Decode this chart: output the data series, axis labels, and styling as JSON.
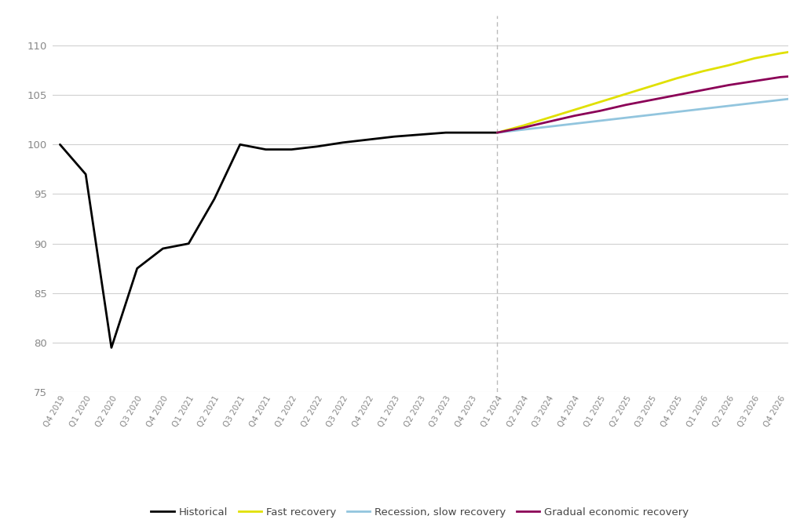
{
  "background_color": "#ffffff",
  "ylim": [
    75,
    113
  ],
  "yticks": [
    75,
    80,
    85,
    90,
    95,
    100,
    105,
    110
  ],
  "grid_color": "#d0d0d0",
  "vline_x": 17,
  "historical": {
    "label": "Historical",
    "color": "#000000",
    "x": [
      0,
      1,
      2,
      3,
      4,
      5,
      6,
      7,
      8,
      9,
      10,
      11,
      12,
      13,
      14,
      15,
      16,
      17
    ],
    "y": [
      100.0,
      97.0,
      79.5,
      87.5,
      89.5,
      90.0,
      94.5,
      100.0,
      99.5,
      99.5,
      99.8,
      100.2,
      100.5,
      100.8,
      101.0,
      101.2,
      101.2,
      101.2
    ]
  },
  "fast_recovery": {
    "label": "Fast recovery",
    "color": "#e0e000",
    "x": [
      17,
      18,
      19,
      20,
      21,
      22,
      23,
      24,
      25,
      26,
      27,
      28,
      29
    ],
    "y": [
      101.2,
      101.9,
      102.7,
      103.5,
      104.3,
      105.1,
      105.9,
      106.7,
      107.4,
      108.0,
      108.7,
      109.2,
      109.6
    ]
  },
  "slow_recovery": {
    "label": "Recession, slow recovery",
    "color": "#92c5de",
    "x": [
      17,
      18,
      19,
      20,
      21,
      22,
      23,
      24,
      25,
      26,
      27,
      28,
      29
    ],
    "y": [
      101.2,
      101.5,
      101.8,
      102.1,
      102.4,
      102.7,
      103.0,
      103.3,
      103.6,
      103.9,
      104.2,
      104.5,
      104.8
    ]
  },
  "gradual_recovery": {
    "label": "Gradual economic recovery",
    "color": "#8b0057",
    "x": [
      17,
      18,
      19,
      20,
      21,
      22,
      23,
      24,
      25,
      26,
      27,
      28,
      29
    ],
    "y": [
      101.2,
      101.7,
      102.3,
      102.9,
      103.4,
      104.0,
      104.5,
      105.0,
      105.5,
      106.0,
      106.4,
      106.8,
      107.0
    ]
  },
  "xtick_labels": [
    "Q4 2019",
    "Q1 2020",
    "Q2 2020",
    "Q3 2020",
    "Q4 2020",
    "Q1 2021",
    "Q2 2021",
    "Q3 2021",
    "Q4 2021",
    "Q1 2022",
    "Q2 2022",
    "Q3 2022",
    "Q4 2022",
    "Q1 2023",
    "Q2 2023",
    "Q3 2023",
    "Q4 2023",
    "Q1 2024",
    "Q2 2024",
    "Q3 2024",
    "Q4 2024",
    "Q1 2025",
    "Q2 2025",
    "Q3 2025",
    "Q4 2025",
    "Q1 2026",
    "Q2 2026",
    "Q3 2026",
    "Q4 2026"
  ]
}
